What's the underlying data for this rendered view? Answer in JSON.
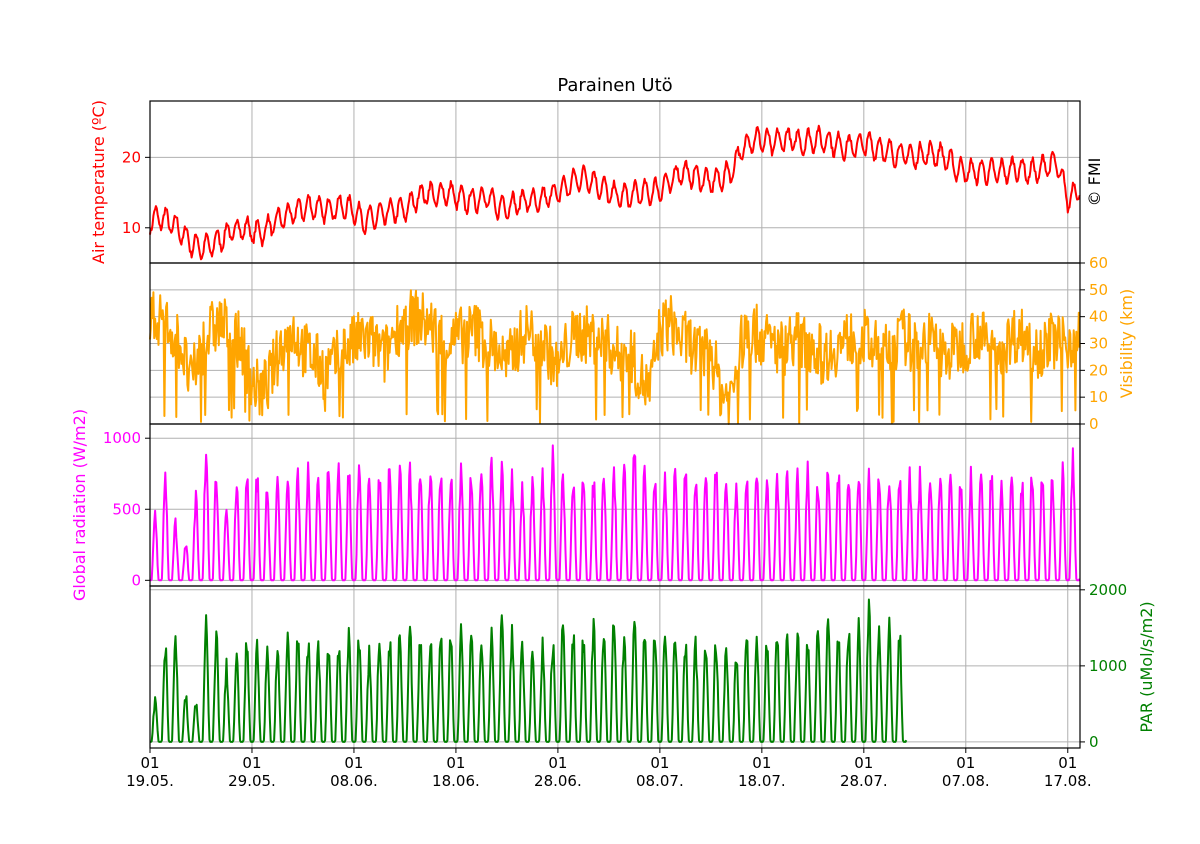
{
  "title": "Parainen Utö",
  "watermark": "© FMI",
  "x_axis": {
    "range_days": [
      0,
      91.2
    ],
    "ticks": [
      {
        "day": 0,
        "top": "01",
        "bottom": "19.05."
      },
      {
        "day": 10,
        "top": "01",
        "bottom": "29.05."
      },
      {
        "day": 20,
        "top": "01",
        "bottom": "08.06."
      },
      {
        "day": 30,
        "top": "01",
        "bottom": "18.06."
      },
      {
        "day": 40,
        "top": "01",
        "bottom": "28.06."
      },
      {
        "day": 50,
        "top": "01",
        "bottom": "08.07."
      },
      {
        "day": 60,
        "top": "01",
        "bottom": "18.07."
      },
      {
        "day": 70,
        "top": "01",
        "bottom": "28.07."
      },
      {
        "day": 80,
        "top": "01",
        "bottom": "07.08."
      },
      {
        "day": 90,
        "top": "01",
        "bottom": "17.08."
      }
    ]
  },
  "chart_data": [
    {
      "type": "line",
      "name": "temperature",
      "ylabel": "Air temperature (ºC)",
      "color": "#ff0000",
      "ylim": [
        5,
        28
      ],
      "yticks": [
        10,
        20
      ],
      "yaxis_side": "left",
      "x_unit": "days since 19.05.",
      "y": [
        11.0,
        11.5,
        10.8,
        9.5,
        7.8,
        7.2,
        7.5,
        8.5,
        9.5,
        10.0,
        9.5,
        9.3,
        10.5,
        11.5,
        12.0,
        12.8,
        13.0,
        12.5,
        12.8,
        13.0,
        12.5,
        11.0,
        11.5,
        12.0,
        12.5,
        12.5,
        14.0,
        15.0,
        14.5,
        15.0,
        14.5,
        13.8,
        14.0,
        14.5,
        13.0,
        13.0,
        13.5,
        14.0,
        13.5,
        14.5,
        15.0,
        16.0,
        17.0,
        17.0,
        16.0,
        15.0,
        14.5,
        14.5,
        15.0,
        15.0,
        15.5,
        16.5,
        18.0,
        17.5,
        17.0,
        16.5,
        17.0,
        18.0,
        21.0,
        22.5,
        22.5,
        22.0,
        22.5,
        22.5,
        22.0,
        22.5,
        22.5,
        22.0,
        21.5,
        21.5,
        22.0,
        21.5,
        21.0,
        20.5,
        20.5,
        20.0,
        20.5,
        20.5,
        20.0,
        18.5,
        18.0,
        18.0,
        18.0,
        18.0,
        18.0,
        18.5,
        18.0,
        18.0,
        19.0,
        19.0,
        14.0,
        15.5
      ]
    },
    {
      "type": "line",
      "name": "visibility",
      "ylabel": "Visibility (km)",
      "color": "#ffa500",
      "ylim": [
        0,
        60
      ],
      "yticks": [
        0,
        10,
        20,
        30,
        40,
        50,
        60
      ],
      "yaxis_side": "right",
      "x_unit": "days since 19.05.",
      "y": [
        38,
        40,
        35,
        30,
        15,
        28,
        35,
        38,
        33,
        30,
        15,
        12,
        20,
        30,
        35,
        28,
        25,
        20,
        22,
        28,
        30,
        32,
        30,
        25,
        35,
        38,
        40,
        38,
        35,
        30,
        32,
        34,
        35,
        30,
        28,
        22,
        30,
        35,
        32,
        28,
        20,
        30,
        34,
        33,
        32,
        30,
        25,
        28,
        18,
        12,
        35,
        38,
        32,
        30,
        25,
        28,
        12,
        10,
        30,
        35,
        32,
        30,
        28,
        33,
        30,
        30,
        25,
        28,
        30,
        33,
        32,
        28,
        26,
        30,
        33,
        28,
        32,
        30,
        25,
        28,
        30,
        35,
        30,
        28,
        30,
        34,
        32,
        28,
        30,
        32,
        30,
        35
      ]
    },
    {
      "type": "line",
      "name": "global_radiation",
      "ylabel": "Global radiation (W/m2)",
      "color": "#ff00ff",
      "ylim": [
        -40,
        1100
      ],
      "yticks": [
        0,
        500,
        1000
      ],
      "yaxis_side": "left",
      "x_unit": "days since 19.05.",
      "y": [
        500,
        800,
        450,
        300,
        650,
        1000,
        850,
        600,
        700,
        800,
        820,
        700,
        750,
        800,
        800,
        830,
        850,
        850,
        880,
        850,
        880,
        850,
        800,
        880,
        880,
        850,
        830,
        880,
        850,
        800,
        850,
        850,
        880,
        900,
        850,
        800,
        750,
        800,
        850,
        1030,
        850,
        800,
        850,
        780,
        820,
        850,
        850,
        1030,
        820,
        850,
        800,
        830,
        850,
        820,
        800,
        850,
        800,
        800,
        800,
        850,
        830,
        800,
        820,
        800,
        850,
        800,
        850,
        830,
        810,
        780,
        800,
        830,
        850,
        800,
        820,
        840,
        820,
        830,
        810,
        820,
        800,
        850,
        840,
        800,
        830,
        800,
        860,
        830,
        820,
        850,
        950,
        700
      ]
    },
    {
      "type": "line",
      "name": "par",
      "ylabel": "PAR (uMol/s/m2)",
      "color": "#008000",
      "ylim": [
        -80,
        2050
      ],
      "yticks": [
        0,
        1000,
        2000
      ],
      "yaxis_side": "right",
      "x_unit": "days since 19.05.",
      "x_end_day": 74.2,
      "y": [
        600,
        1400,
        1500,
        700,
        600,
        1700,
        1600,
        1100,
        1200,
        1500,
        1500,
        1300,
        1400,
        1500,
        1500,
        1500,
        1450,
        1500,
        1500,
        1550,
        1500,
        1300,
        1500,
        1500,
        1550,
        1600,
        1500,
        1550,
        1650,
        1500,
        1600,
        1550,
        1500,
        1650,
        1800,
        1600,
        1500,
        1200,
        1400,
        1500,
        1700,
        1600,
        1500,
        1750,
        1650,
        1900,
        1600,
        1850,
        1700,
        1600,
        1650,
        1700,
        1500,
        1400,
        1500,
        1550,
        1500,
        1300,
        1500,
        1550,
        1600,
        1650,
        1600,
        1600,
        1550,
        1650,
        1700,
        1600,
        1650,
        1700,
        1950,
        1700,
        1700,
        1600,
        1500
      ]
    }
  ]
}
